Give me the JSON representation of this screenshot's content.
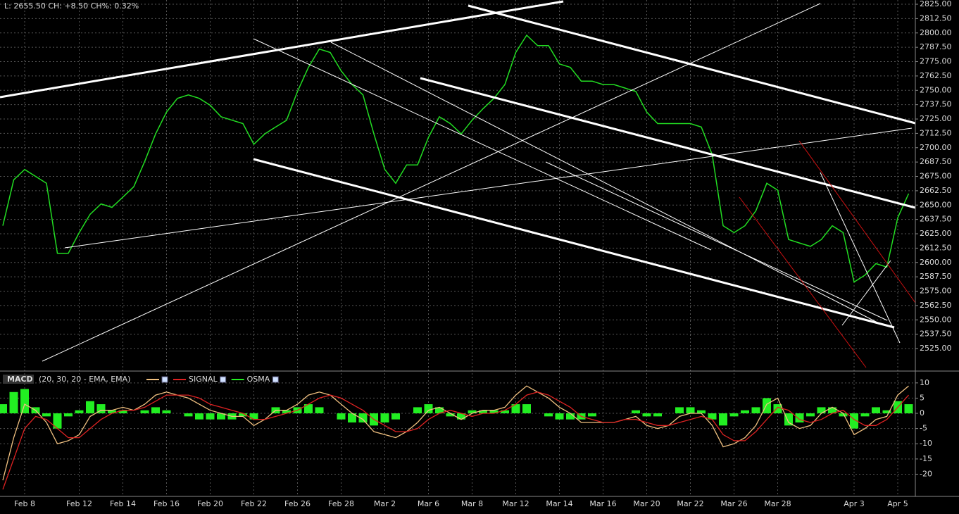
{
  "chart_data": [
    {
      "type": "line",
      "title": "L: 2655.50 CH: +8.50 CH%: 0.32%",
      "categories": [
        null,
        null,
        "Feb 8",
        null,
        null,
        null,
        null,
        "Feb 12",
        null,
        null,
        null,
        "Feb 14",
        null,
        null,
        null,
        "Feb 16",
        null,
        null,
        null,
        "Feb 20",
        null,
        null,
        null,
        "Feb 22",
        null,
        null,
        null,
        "Feb 26",
        null,
        null,
        null,
        "Feb 28",
        null,
        null,
        null,
        "Mar 2",
        null,
        null,
        null,
        "Mar 6",
        null,
        null,
        null,
        "Mar 8",
        null,
        null,
        null,
        "Mar 12",
        null,
        null,
        null,
        "Mar 14",
        null,
        null,
        null,
        "Mar 16",
        null,
        null,
        null,
        "Mar 20",
        null,
        null,
        null,
        "Mar 22",
        null,
        null,
        null,
        "Mar 26",
        null,
        null,
        null,
        "Mar 28",
        null,
        null,
        null,
        null,
        null,
        null,
        "Apr 3",
        null,
        null,
        null,
        "Apr 5",
        null
      ],
      "values": [
        2632,
        2672,
        2681,
        2675,
        2669,
        2608,
        2608,
        2626,
        2642,
        2651,
        2648,
        2657,
        2666,
        2688,
        2712,
        2731,
        2743,
        2746,
        2743,
        2737,
        2727,
        2724,
        2721,
        2703,
        2712,
        2718,
        2724,
        2749,
        2770,
        2786,
        2783,
        2767,
        2755,
        2746,
        2712,
        2681,
        2669,
        2685,
        2685,
        2709,
        2727,
        2721,
        2712,
        2724,
        2734,
        2743,
        2755,
        2783,
        2798,
        2789,
        2789,
        2773,
        2770,
        2758,
        2758,
        2755,
        2755,
        2752,
        2749,
        2731,
        2721,
        2721,
        2721,
        2721,
        2718,
        2694,
        2632,
        2626,
        2632,
        2645,
        2669,
        2663,
        2620,
        2617,
        2614,
        2620,
        2632,
        2626,
        2583,
        2589,
        2599,
        2596,
        2639,
        2660
      ],
      "color": "#22dd22",
      "ylim": [
        2506.6,
        2828.7
      ],
      "yticks": [
        {
          "value": 2525,
          "label": "2525.00"
        },
        {
          "value": 2537.5,
          "label": "2537.50"
        },
        {
          "value": 2550,
          "label": "2550.00"
        },
        {
          "value": 2562.5,
          "label": "2562.50"
        },
        {
          "value": 2575,
          "label": "2575.00"
        },
        {
          "value": 2587.5,
          "label": "2587.50"
        },
        {
          "value": 2600,
          "label": "2600.00"
        },
        {
          "value": 2612.5,
          "label": "2612.50"
        },
        {
          "value": 2625,
          "label": "2625.00"
        },
        {
          "value": 2637.5,
          "label": "2637.50"
        },
        {
          "value": 2650,
          "label": "2650.00"
        },
        {
          "value": 2662.5,
          "label": "2662.50"
        },
        {
          "value": 2675,
          "label": "2675.00"
        },
        {
          "value": 2687.5,
          "label": "2687.50"
        },
        {
          "value": 2700,
          "label": "2700.00"
        },
        {
          "value": 2712.5,
          "label": "2712.50"
        },
        {
          "value": 2725,
          "label": "2725.00"
        },
        {
          "value": 2737.5,
          "label": "2737.50"
        },
        {
          "value": 2750,
          "label": "2750.00"
        },
        {
          "value": 2762.5,
          "label": "2762.50"
        },
        {
          "value": 2775,
          "label": "2775.00"
        },
        {
          "value": 2787.5,
          "label": "2787.50"
        },
        {
          "value": 2800,
          "label": "2800.00"
        },
        {
          "value": 2812.5,
          "label": "2812.50"
        },
        {
          "value": 2825,
          "label": "2825.00"
        }
      ],
      "grid": true
    },
    {
      "type": "macd",
      "title": "MACD",
      "subtitle": "(20, 30, 20 - EMA, EMA)",
      "series": [
        {
          "color": "#f0c080",
          "style": "line",
          "values": [
            -22,
            -8,
            3,
            1,
            -3,
            -10,
            -9,
            -7,
            -1,
            1,
            1,
            2,
            1,
            3,
            6,
            7,
            6,
            5,
            3,
            1,
            0,
            -1,
            -1,
            -4,
            -2,
            1,
            1,
            3,
            6,
            7,
            6,
            3,
            0,
            -2,
            -6,
            -7,
            -8,
            -6,
            -3,
            1,
            2,
            0,
            -2,
            0,
            1,
            1,
            2,
            6,
            9,
            7,
            5,
            2,
            0,
            -3,
            -3,
            -3,
            -3,
            -2,
            -1,
            -4,
            -5,
            -4,
            -1,
            0,
            0,
            -4,
            -11,
            -10,
            -8,
            -4,
            3,
            5,
            -3,
            -5,
            -4,
            0,
            2,
            0,
            -7,
            -5,
            -2,
            -1,
            6,
            9
          ]
        },
        {
          "name": "SIGNAL",
          "color": "#dd2222",
          "style": "line",
          "values": [
            -25,
            -15,
            -5,
            -1,
            -2,
            -5,
            -8,
            -8,
            -5,
            -2,
            0,
            1,
            1,
            2,
            4,
            6,
            6,
            6,
            5,
            3,
            2,
            1,
            0,
            -2,
            -2,
            -1,
            0,
            1,
            3,
            5,
            6,
            5,
            3,
            1,
            -2,
            -4,
            -6,
            -6,
            -5,
            -2,
            0,
            1,
            0,
            -1,
            0,
            0,
            1,
            3,
            6,
            7,
            6,
            4,
            2,
            -1,
            -2,
            -3,
            -3,
            -2,
            -2,
            -3,
            -4,
            -4,
            -3,
            -2,
            -1,
            -2,
            -7,
            -9,
            -9,
            -6,
            -2,
            2,
            1,
            -2,
            -3,
            -2,
            0,
            1,
            -2,
            -4,
            -4,
            -2,
            2,
            6
          ]
        },
        {
          "name": "OSMA",
          "color": "#22ee22",
          "style": "histogram",
          "values": [
            3,
            7,
            8,
            2,
            -1,
            -5,
            -1,
            1,
            4,
            3,
            1,
            1,
            0,
            1,
            2,
            1,
            0,
            -1,
            -2,
            -2,
            -2,
            -2,
            -1,
            -2,
            0,
            2,
            1,
            2,
            3,
            2,
            0,
            -2,
            -3,
            -3,
            -4,
            -3,
            -2,
            0,
            2,
            3,
            2,
            -1,
            -2,
            1,
            1,
            1,
            1,
            3,
            3,
            0,
            -1,
            -2,
            -2,
            -2,
            -1,
            0,
            0,
            0,
            1,
            -1,
            -1,
            0,
            2,
            2,
            1,
            -2,
            -4,
            -1,
            1,
            2,
            5,
            3,
            -4,
            -3,
            -1,
            2,
            2,
            -1,
            -5,
            -1,
            2,
            1,
            4,
            3
          ]
        }
      ],
      "ylim": [
        -27.3,
        13.2
      ],
      "yticks": [
        10,
        5,
        0,
        -5,
        -10,
        -15,
        -20
      ],
      "grid": true
    }
  ]
}
